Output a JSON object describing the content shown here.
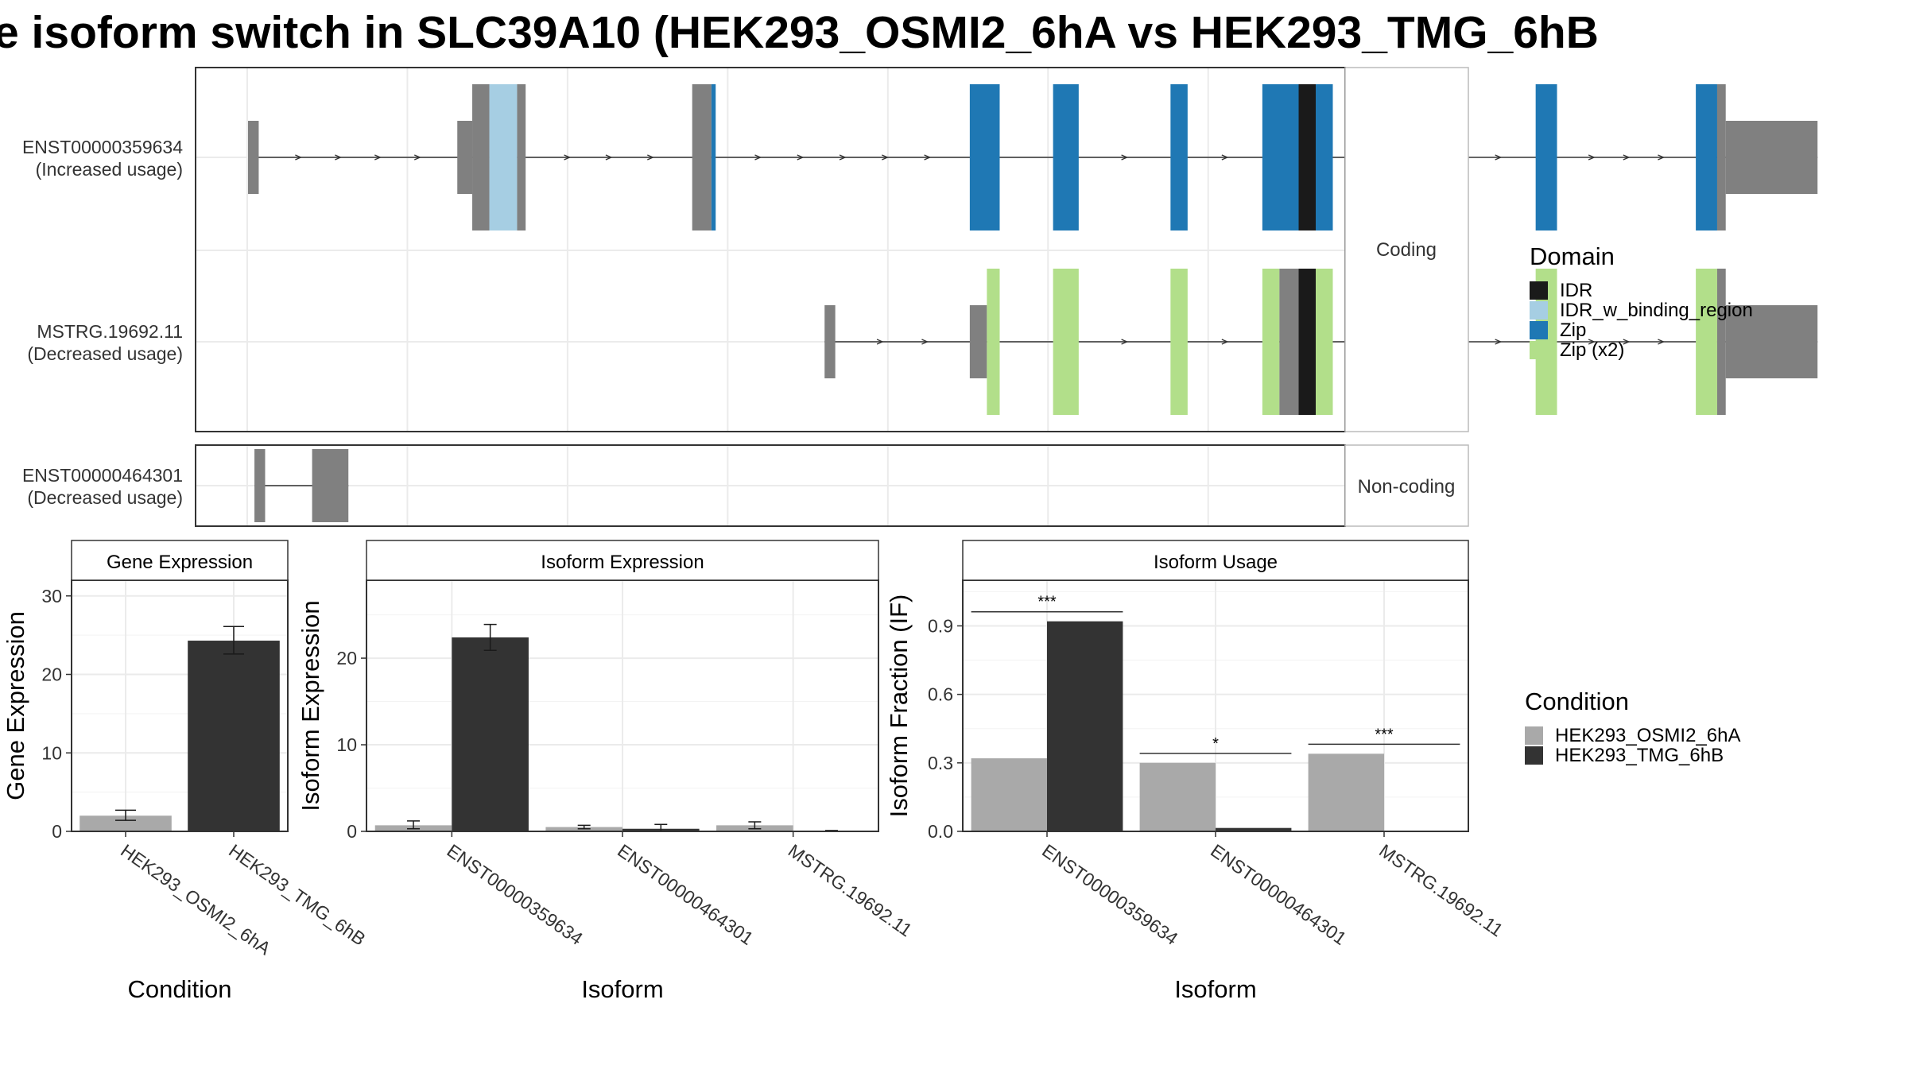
{
  "title": "e isoform switch in SLC39A10 (HEK293_OSMI2_6hA vs HEK293_TMG_6hB",
  "colors": {
    "IDR": "#1a1a1a",
    "IDR_w_binding_region": "#a6cee3",
    "Zip": "#1f78b4",
    "Zip (x2)": "#b2df8a",
    "exon": "#808080",
    "condA": "#a9a9a9",
    "condB": "#333333"
  },
  "structure": {
    "coding_label": "Coding",
    "noncoding_label": "Non-coding",
    "transcripts": [
      {
        "id": "ENST00000359634",
        "usage": "(Increased usage)",
        "group": "coding",
        "exons": [
          {
            "s": 0,
            "e": 1.0,
            "h": "utr"
          },
          {
            "s": 19.6,
            "e": 21.0,
            "h": "utr"
          },
          {
            "s": 21.0,
            "e": 22.6,
            "h": "cds"
          },
          {
            "s": 22.6,
            "e": 25.2,
            "h": "cds",
            "d": "IDR_w_binding_region"
          },
          {
            "s": 25.2,
            "e": 26.0,
            "h": "cds"
          },
          {
            "s": 41.6,
            "e": 43.4,
            "h": "cds"
          },
          {
            "s": 43.4,
            "e": 43.8,
            "h": "cds",
            "d": "Zip"
          },
          {
            "s": 67.6,
            "e": 70.4,
            "h": "cds",
            "d": "Zip"
          },
          {
            "s": 75.4,
            "e": 77.8,
            "h": "cds",
            "d": "Zip"
          },
          {
            "s": 86.4,
            "e": 88.0,
            "h": "cds",
            "d": "Zip"
          },
          {
            "s": 95.0,
            "e": 98.4,
            "h": "cds",
            "d": "Zip"
          },
          {
            "s": 98.4,
            "e": 100.0,
            "h": "cds",
            "d": "IDR"
          },
          {
            "s": 100.0,
            "e": 101.6,
            "h": "cds",
            "d": "Zip"
          },
          {
            "s": 105.0,
            "e": 106.6,
            "h": "cds",
            "d": "Zip"
          },
          {
            "s": 120.6,
            "e": 122.6,
            "h": "cds",
            "d": "Zip"
          },
          {
            "s": 135.6,
            "e": 137.6,
            "h": "cds",
            "d": "Zip"
          },
          {
            "s": 137.6,
            "e": 138.4,
            "h": "cds"
          },
          {
            "s": 138.4,
            "e": 147.0,
            "h": "utr"
          }
        ]
      },
      {
        "id": "MSTRG.19692.11",
        "usage": "(Decreased usage)",
        "group": "coding",
        "exons": [
          {
            "s": 54.0,
            "e": 55.0,
            "h": "utr"
          },
          {
            "s": 67.6,
            "e": 69.2,
            "h": "utr"
          },
          {
            "s": 69.2,
            "e": 70.4,
            "h": "cds",
            "d": "Zip (x2)"
          },
          {
            "s": 75.4,
            "e": 77.8,
            "h": "cds",
            "d": "Zip (x2)"
          },
          {
            "s": 86.4,
            "e": 88.0,
            "h": "cds",
            "d": "Zip (x2)"
          },
          {
            "s": 95.0,
            "e": 96.6,
            "h": "cds",
            "d": "Zip (x2)"
          },
          {
            "s": 96.6,
            "e": 98.4,
            "h": "cds"
          },
          {
            "s": 98.4,
            "e": 100.0,
            "h": "cds",
            "d": "IDR"
          },
          {
            "s": 100.0,
            "e": 101.6,
            "h": "cds",
            "d": "Zip (x2)"
          },
          {
            "s": 105.0,
            "e": 106.6,
            "h": "cds",
            "d": "Zip (x2)"
          },
          {
            "s": 120.6,
            "e": 122.6,
            "h": "cds",
            "d": "Zip (x2)"
          },
          {
            "s": 135.6,
            "e": 137.6,
            "h": "cds",
            "d": "Zip (x2)"
          },
          {
            "s": 137.6,
            "e": 138.4,
            "h": "cds"
          },
          {
            "s": 138.4,
            "e": 147.0,
            "h": "utr"
          }
        ]
      },
      {
        "id": "ENST00000464301",
        "usage": "(Decreased usage)",
        "group": "noncoding",
        "exons": [
          {
            "s": 0.6,
            "e": 1.6,
            "h": "nc"
          },
          {
            "s": 6.0,
            "e": 9.4,
            "h": "nc"
          }
        ]
      }
    ]
  },
  "legend_domain": {
    "title": "Domain",
    "items": [
      "IDR",
      "IDR_w_binding_region",
      "Zip",
      "Zip (x2)"
    ]
  },
  "legend_condition": {
    "title": "Condition",
    "items": [
      "HEK293_OSMI2_6hA",
      "HEK293_TMG_6hB"
    ]
  },
  "chart_data": [
    {
      "type": "bar",
      "title": "Gene Expression",
      "xlabel": "Condition",
      "ylabel": "Gene Expression",
      "ylim": [
        0,
        32
      ],
      "yticks": [
        "0",
        "10",
        "20",
        "30"
      ],
      "categories": [
        "HEK293_OSMI2_6hA",
        "HEK293_TMG_6hB"
      ],
      "values": [
        2.0,
        24.3
      ],
      "errors": [
        [
          1.4,
          2.7
        ],
        [
          22.6,
          26.1
        ]
      ]
    },
    {
      "type": "bar",
      "title": "Isoform Expression",
      "xlabel": "Isoform",
      "ylabel": "Isoform Expression",
      "ylim": [
        0,
        29
      ],
      "yticks": [
        "0",
        "10",
        "20"
      ],
      "categories": [
        "ENST00000359634",
        "ENST00000464301",
        "MSTRG.19692.11"
      ],
      "series": [
        {
          "name": "HEK293_OSMI2_6hA",
          "values": [
            0.7,
            0.5,
            0.7
          ],
          "errors": [
            [
              0.3,
              1.2
            ],
            [
              0.3,
              0.7
            ],
            [
              0.3,
              1.1
            ]
          ]
        },
        {
          "name": "HEK293_TMG_6hB",
          "values": [
            22.4,
            0.3,
            0.05
          ],
          "errors": [
            [
              20.9,
              23.9
            ],
            [
              0.0,
              0.8
            ],
            [
              0.0,
              0.1
            ]
          ]
        }
      ]
    },
    {
      "type": "bar",
      "title": "Isoform Usage",
      "xlabel": "Isoform",
      "ylabel": "Isoform Fraction (IF)",
      "ylim": [
        0,
        1.1
      ],
      "yticks": [
        "0.0",
        "0.3",
        "0.6",
        "0.9"
      ],
      "categories": [
        "ENST00000359634",
        "ENST00000464301",
        "MSTRG.19692.11"
      ],
      "series": [
        {
          "name": "HEK293_OSMI2_6hA",
          "values": [
            0.32,
            0.3,
            0.34
          ]
        },
        {
          "name": "HEK293_TMG_6hB",
          "values": [
            0.92,
            0.015,
            0.0
          ]
        }
      ],
      "significance": [
        "***",
        "*",
        "***"
      ]
    }
  ]
}
